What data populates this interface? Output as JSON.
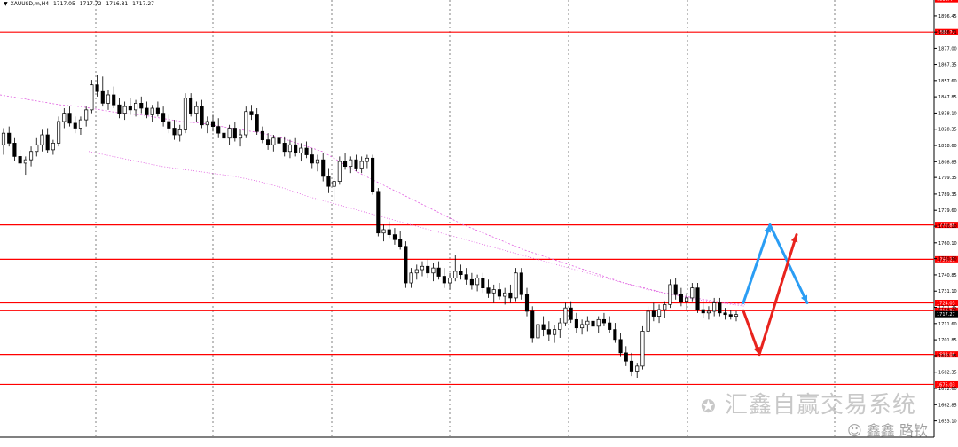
{
  "header": {
    "marker": "▼",
    "symbol": "XAUUSD,m,H4",
    "ohlc": [
      "1717.05",
      "1717.72",
      "1716.81",
      "1717.27"
    ]
  },
  "watermark": {
    "main": "汇鑫自赢交易系统",
    "sub": "鑫鑫 路钦"
  },
  "colors": {
    "candle": "#000000",
    "ma": "#e060e0",
    "level": "#ff0000",
    "up_arrow": "#2a9df4",
    "down_arrow": "#e8231d",
    "grid": "#808080"
  },
  "chart_data": {
    "type": "candlestick",
    "ylim": [
      1643.3,
      1906.0
    ],
    "y_ticks": [
      "1896.45",
      "1886.71",
      "1877.00",
      "1867.35",
      "1857.60",
      "1847.85",
      "1838.10",
      "1828.35",
      "1818.60",
      "1808.85",
      "1799.35",
      "1789.35",
      "1779.60",
      "1770.10",
      "1760.10",
      "1750.60",
      "1740.85",
      "1731.10",
      "1721.35",
      "1711.60",
      "1701.85",
      "1692.35",
      "1682.35",
      "1672.60",
      "1662.85",
      "1653.10",
      "1643.35"
    ],
    "levels": [
      {
        "label": "1906.44",
        "value": 1906.44
      },
      {
        "label": "1886.71",
        "value": 1886.71
      },
      {
        "label": "1770.86",
        "value": 1770.86
      },
      {
        "label": "1750.21",
        "value": 1750.21
      },
      {
        "label": "1724.03",
        "value": 1724.03
      },
      {
        "label": "1719.34",
        "value": 1719.34
      },
      {
        "label": "1693.06",
        "value": 1693.06
      },
      {
        "label": "1675.03",
        "value": 1675.03
      }
    ],
    "price_tag": {
      "label": "1717.27",
      "value": 1717.27
    },
    "candles": [
      {
        "o": 1819,
        "h": 1829,
        "l": 1813,
        "c": 1826
      },
      {
        "o": 1826,
        "h": 1830,
        "l": 1818,
        "c": 1820
      },
      {
        "o": 1820,
        "h": 1823,
        "l": 1809,
        "c": 1812
      },
      {
        "o": 1812,
        "h": 1816,
        "l": 1804,
        "c": 1808
      },
      {
        "o": 1808,
        "h": 1812,
        "l": 1801,
        "c": 1810
      },
      {
        "o": 1810,
        "h": 1818,
        "l": 1806,
        "c": 1815
      },
      {
        "o": 1815,
        "h": 1823,
        "l": 1812,
        "c": 1819
      },
      {
        "o": 1819,
        "h": 1828,
        "l": 1815,
        "c": 1825
      },
      {
        "o": 1825,
        "h": 1829,
        "l": 1814,
        "c": 1816
      },
      {
        "o": 1816,
        "h": 1822,
        "l": 1813,
        "c": 1820
      },
      {
        "o": 1820,
        "h": 1836,
        "l": 1818,
        "c": 1833
      },
      {
        "o": 1833,
        "h": 1841,
        "l": 1829,
        "c": 1838
      },
      {
        "o": 1838,
        "h": 1842,
        "l": 1830,
        "c": 1832
      },
      {
        "o": 1832,
        "h": 1836,
        "l": 1826,
        "c": 1829
      },
      {
        "o": 1829,
        "h": 1836,
        "l": 1825,
        "c": 1834
      },
      {
        "o": 1834,
        "h": 1842,
        "l": 1830,
        "c": 1840
      },
      {
        "o": 1840,
        "h": 1858,
        "l": 1838,
        "c": 1855
      },
      {
        "o": 1855,
        "h": 1861,
        "l": 1848,
        "c": 1851
      },
      {
        "o": 1851,
        "h": 1860,
        "l": 1842,
        "c": 1844
      },
      {
        "o": 1844,
        "h": 1852,
        "l": 1840,
        "c": 1849
      },
      {
        "o": 1849,
        "h": 1854,
        "l": 1841,
        "c": 1843
      },
      {
        "o": 1843,
        "h": 1847,
        "l": 1835,
        "c": 1838
      },
      {
        "o": 1838,
        "h": 1845,
        "l": 1834,
        "c": 1842
      },
      {
        "o": 1842,
        "h": 1847,
        "l": 1837,
        "c": 1840
      },
      {
        "o": 1840,
        "h": 1846,
        "l": 1836,
        "c": 1844
      },
      {
        "o": 1844,
        "h": 1848,
        "l": 1838,
        "c": 1841
      },
      {
        "o": 1841,
        "h": 1845,
        "l": 1835,
        "c": 1837
      },
      {
        "o": 1837,
        "h": 1843,
        "l": 1833,
        "c": 1841
      },
      {
        "o": 1841,
        "h": 1845,
        "l": 1836,
        "c": 1838
      },
      {
        "o": 1838,
        "h": 1842,
        "l": 1830,
        "c": 1833
      },
      {
        "o": 1833,
        "h": 1837,
        "l": 1826,
        "c": 1829
      },
      {
        "o": 1829,
        "h": 1834,
        "l": 1822,
        "c": 1825
      },
      {
        "o": 1825,
        "h": 1831,
        "l": 1821,
        "c": 1828
      },
      {
        "o": 1828,
        "h": 1850,
        "l": 1826,
        "c": 1847
      },
      {
        "o": 1847,
        "h": 1850,
        "l": 1836,
        "c": 1838
      },
      {
        "o": 1838,
        "h": 1845,
        "l": 1833,
        "c": 1842
      },
      {
        "o": 1842,
        "h": 1846,
        "l": 1829,
        "c": 1831
      },
      {
        "o": 1831,
        "h": 1836,
        "l": 1826,
        "c": 1833
      },
      {
        "o": 1833,
        "h": 1837,
        "l": 1827,
        "c": 1830
      },
      {
        "o": 1830,
        "h": 1835,
        "l": 1823,
        "c": 1826
      },
      {
        "o": 1826,
        "h": 1830,
        "l": 1820,
        "c": 1823
      },
      {
        "o": 1823,
        "h": 1831,
        "l": 1819,
        "c": 1829
      },
      {
        "o": 1829,
        "h": 1833,
        "l": 1821,
        "c": 1823
      },
      {
        "o": 1823,
        "h": 1828,
        "l": 1818,
        "c": 1825
      },
      {
        "o": 1825,
        "h": 1842,
        "l": 1823,
        "c": 1839
      },
      {
        "o": 1839,
        "h": 1843,
        "l": 1834,
        "c": 1837
      },
      {
        "o": 1837,
        "h": 1841,
        "l": 1825,
        "c": 1827
      },
      {
        "o": 1827,
        "h": 1830,
        "l": 1820,
        "c": 1822
      },
      {
        "o": 1822,
        "h": 1826,
        "l": 1816,
        "c": 1819
      },
      {
        "o": 1819,
        "h": 1825,
        "l": 1815,
        "c": 1823
      },
      {
        "o": 1823,
        "h": 1827,
        "l": 1817,
        "c": 1820
      },
      {
        "o": 1820,
        "h": 1824,
        "l": 1812,
        "c": 1815
      },
      {
        "o": 1815,
        "h": 1822,
        "l": 1811,
        "c": 1819
      },
      {
        "o": 1819,
        "h": 1823,
        "l": 1812,
        "c": 1814
      },
      {
        "o": 1814,
        "h": 1820,
        "l": 1809,
        "c": 1817
      },
      {
        "o": 1817,
        "h": 1821,
        "l": 1811,
        "c": 1813
      },
      {
        "o": 1813,
        "h": 1817,
        "l": 1805,
        "c": 1808
      },
      {
        "o": 1808,
        "h": 1813,
        "l": 1803,
        "c": 1810
      },
      {
        "o": 1810,
        "h": 1814,
        "l": 1797,
        "c": 1800
      },
      {
        "o": 1800,
        "h": 1805,
        "l": 1790,
        "c": 1794
      },
      {
        "o": 1794,
        "h": 1799,
        "l": 1785,
        "c": 1797
      },
      {
        "o": 1797,
        "h": 1812,
        "l": 1795,
        "c": 1809
      },
      {
        "o": 1809,
        "h": 1814,
        "l": 1804,
        "c": 1806
      },
      {
        "o": 1806,
        "h": 1812,
        "l": 1802,
        "c": 1810
      },
      {
        "o": 1810,
        "h": 1813,
        "l": 1803,
        "c": 1805
      },
      {
        "o": 1805,
        "h": 1812,
        "l": 1802,
        "c": 1809
      },
      {
        "o": 1809,
        "h": 1813,
        "l": 1805,
        "c": 1811
      },
      {
        "o": 1811,
        "h": 1813,
        "l": 1789,
        "c": 1791
      },
      {
        "o": 1791,
        "h": 1793,
        "l": 1764,
        "c": 1766
      },
      {
        "o": 1766,
        "h": 1771,
        "l": 1761,
        "c": 1768
      },
      {
        "o": 1768,
        "h": 1773,
        "l": 1763,
        "c": 1765
      },
      {
        "o": 1765,
        "h": 1769,
        "l": 1759,
        "c": 1762
      },
      {
        "o": 1762,
        "h": 1767,
        "l": 1756,
        "c": 1758
      },
      {
        "o": 1758,
        "h": 1761,
        "l": 1733,
        "c": 1736
      },
      {
        "o": 1736,
        "h": 1745,
        "l": 1733,
        "c": 1742
      },
      {
        "o": 1742,
        "h": 1747,
        "l": 1738,
        "c": 1744
      },
      {
        "o": 1744,
        "h": 1749,
        "l": 1740,
        "c": 1746
      },
      {
        "o": 1746,
        "h": 1750,
        "l": 1739,
        "c": 1742
      },
      {
        "o": 1742,
        "h": 1748,
        "l": 1737,
        "c": 1745
      },
      {
        "o": 1745,
        "h": 1749,
        "l": 1738,
        "c": 1740
      },
      {
        "o": 1740,
        "h": 1745,
        "l": 1733,
        "c": 1736
      },
      {
        "o": 1736,
        "h": 1742,
        "l": 1732,
        "c": 1739
      },
      {
        "o": 1739,
        "h": 1753,
        "l": 1737,
        "c": 1743
      },
      {
        "o": 1743,
        "h": 1747,
        "l": 1738,
        "c": 1741
      },
      {
        "o": 1741,
        "h": 1745,
        "l": 1735,
        "c": 1738
      },
      {
        "o": 1738,
        "h": 1742,
        "l": 1732,
        "c": 1735
      },
      {
        "o": 1735,
        "h": 1741,
        "l": 1731,
        "c": 1739
      },
      {
        "o": 1739,
        "h": 1742,
        "l": 1730,
        "c": 1733
      },
      {
        "o": 1733,
        "h": 1738,
        "l": 1727,
        "c": 1730
      },
      {
        "o": 1730,
        "h": 1735,
        "l": 1724,
        "c": 1732
      },
      {
        "o": 1732,
        "h": 1736,
        "l": 1726,
        "c": 1728
      },
      {
        "o": 1728,
        "h": 1733,
        "l": 1723,
        "c": 1730
      },
      {
        "o": 1730,
        "h": 1735,
        "l": 1724,
        "c": 1727
      },
      {
        "o": 1727,
        "h": 1745,
        "l": 1725,
        "c": 1742
      },
      {
        "o": 1742,
        "h": 1745,
        "l": 1726,
        "c": 1729
      },
      {
        "o": 1729,
        "h": 1733,
        "l": 1716,
        "c": 1719
      },
      {
        "o": 1719,
        "h": 1722,
        "l": 1700,
        "c": 1703
      },
      {
        "o": 1703,
        "h": 1714,
        "l": 1699,
        "c": 1711
      },
      {
        "o": 1711,
        "h": 1716,
        "l": 1704,
        "c": 1708
      },
      {
        "o": 1708,
        "h": 1713,
        "l": 1701,
        "c": 1705
      },
      {
        "o": 1705,
        "h": 1711,
        "l": 1700,
        "c": 1708
      },
      {
        "o": 1708,
        "h": 1715,
        "l": 1703,
        "c": 1712
      },
      {
        "o": 1712,
        "h": 1724,
        "l": 1710,
        "c": 1721
      },
      {
        "o": 1721,
        "h": 1725,
        "l": 1712,
        "c": 1714
      },
      {
        "o": 1714,
        "h": 1718,
        "l": 1706,
        "c": 1709
      },
      {
        "o": 1709,
        "h": 1714,
        "l": 1705,
        "c": 1711
      },
      {
        "o": 1711,
        "h": 1716,
        "l": 1707,
        "c": 1713
      },
      {
        "o": 1713,
        "h": 1717,
        "l": 1709,
        "c": 1710
      },
      {
        "o": 1710,
        "h": 1716,
        "l": 1706,
        "c": 1714
      },
      {
        "o": 1714,
        "h": 1718,
        "l": 1710,
        "c": 1712
      },
      {
        "o": 1712,
        "h": 1716,
        "l": 1706,
        "c": 1708
      },
      {
        "o": 1708,
        "h": 1712,
        "l": 1700,
        "c": 1702
      },
      {
        "o": 1702,
        "h": 1706,
        "l": 1692,
        "c": 1694
      },
      {
        "o": 1694,
        "h": 1698,
        "l": 1686,
        "c": 1689
      },
      {
        "o": 1689,
        "h": 1694,
        "l": 1680,
        "c": 1683
      },
      {
        "o": 1683,
        "h": 1688,
        "l": 1679,
        "c": 1686
      },
      {
        "o": 1686,
        "h": 1710,
        "l": 1684,
        "c": 1707
      },
      {
        "o": 1707,
        "h": 1722,
        "l": 1705,
        "c": 1719
      },
      {
        "o": 1719,
        "h": 1724,
        "l": 1713,
        "c": 1716
      },
      {
        "o": 1716,
        "h": 1723,
        "l": 1712,
        "c": 1720
      },
      {
        "o": 1720,
        "h": 1725,
        "l": 1715,
        "c": 1723
      },
      {
        "o": 1723,
        "h": 1738,
        "l": 1721,
        "c": 1735
      },
      {
        "o": 1735,
        "h": 1739,
        "l": 1726,
        "c": 1729
      },
      {
        "o": 1729,
        "h": 1733,
        "l": 1722,
        "c": 1725
      },
      {
        "o": 1725,
        "h": 1730,
        "l": 1720,
        "c": 1727
      },
      {
        "o": 1727,
        "h": 1736,
        "l": 1725,
        "c": 1733
      },
      {
        "o": 1733,
        "h": 1736,
        "l": 1718,
        "c": 1720
      },
      {
        "o": 1720,
        "h": 1724,
        "l": 1715,
        "c": 1718
      },
      {
        "o": 1718,
        "h": 1722,
        "l": 1714,
        "c": 1719
      },
      {
        "o": 1719,
        "h": 1727,
        "l": 1716,
        "c": 1724
      },
      {
        "o": 1724,
        "h": 1727,
        "l": 1716,
        "c": 1718
      },
      {
        "o": 1718,
        "h": 1721,
        "l": 1714,
        "c": 1717
      },
      {
        "o": 1717,
        "h": 1720,
        "l": 1714,
        "c": 1716
      },
      {
        "o": 1716,
        "h": 1719,
        "l": 1713,
        "c": 1717
      }
    ],
    "ma1": [
      1849,
      1847,
      1845,
      1843,
      1842,
      1840,
      1838,
      1837,
      1835,
      1833,
      1832,
      1830,
      1828,
      1826,
      1823,
      1819,
      1815,
      1808,
      1801,
      1795,
      1789,
      1783,
      1777,
      1771,
      1766,
      1761,
      1756,
      1752,
      1748,
      1744,
      1740,
      1736,
      1733,
      1730,
      1728,
      1726,
      1724,
      1723
    ],
    "ma2": [
      1815,
      1812,
      1809,
      1806,
      1804,
      1802,
      1800,
      1797,
      1793,
      1788,
      1784,
      1780,
      1776,
      1772,
      1768,
      1764,
      1760,
      1756,
      1752,
      1748,
      1744,
      1740,
      1736,
      1732,
      1729,
      1726,
      1724,
      1722
    ],
    "projections": [
      {
        "name": "blue",
        "points": [
          [
            0,
            1724.03
          ],
          [
            30,
            1770.86
          ],
          [
            72,
            1724.03
          ]
        ]
      },
      {
        "name": "red",
        "points": [
          [
            0,
            1719.34
          ],
          [
            18,
            1693.06
          ],
          [
            60,
            1765
          ]
        ]
      }
    ]
  }
}
